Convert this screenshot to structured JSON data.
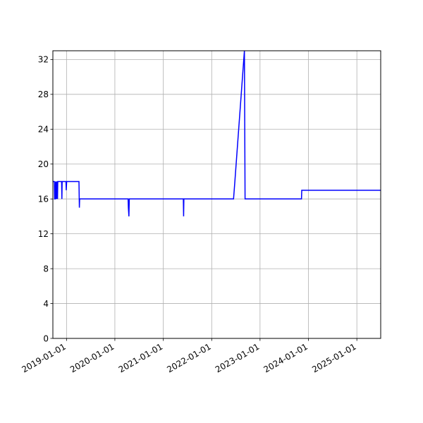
{
  "chart_data": {
    "type": "line",
    "title": "",
    "xlabel": "",
    "ylabel": "",
    "x_axis": {
      "type": "date",
      "range": [
        "2018-09-20",
        "2025-06-30"
      ],
      "ticks": [
        "2019-01-01",
        "2020-01-01",
        "2021-01-01",
        "2022-01-01",
        "2023-01-01",
        "2024-01-01",
        "2025-01-01"
      ]
    },
    "y_axis": {
      "range": [
        0,
        33
      ],
      "ticks": [
        0,
        4,
        8,
        12,
        16,
        20,
        24,
        28,
        32
      ]
    },
    "grid": true,
    "legend": "none",
    "colors": {
      "line": "#0000ff",
      "grid": "#b0b0b0",
      "axis": "#000000"
    },
    "series": [
      {
        "points": [
          [
            "2018-09-20",
            18
          ],
          [
            "2018-10-01",
            18
          ],
          [
            "2018-10-03",
            16
          ],
          [
            "2018-10-08",
            16
          ],
          [
            "2018-10-10",
            18
          ],
          [
            "2018-10-13",
            16
          ],
          [
            "2018-10-16",
            18
          ],
          [
            "2018-10-19",
            16
          ],
          [
            "2018-10-22",
            18
          ],
          [
            "2018-10-25",
            16
          ],
          [
            "2018-10-27",
            18
          ],
          [
            "2018-11-25",
            18
          ],
          [
            "2018-11-27",
            16
          ],
          [
            "2018-11-29",
            18
          ],
          [
            "2018-12-28",
            18
          ],
          [
            "2018-12-30",
            17
          ],
          [
            "2019-01-02",
            18
          ],
          [
            "2019-04-05",
            18
          ],
          [
            "2019-04-08",
            15
          ],
          [
            "2019-04-10",
            16
          ],
          [
            "2020-04-10",
            16
          ],
          [
            "2020-04-12",
            15
          ],
          [
            "2020-04-16",
            14
          ],
          [
            "2020-04-19",
            16
          ],
          [
            "2021-06-01",
            16
          ],
          [
            "2021-06-03",
            14
          ],
          [
            "2021-06-05",
            16
          ],
          [
            "2022-06-15",
            16
          ],
          [
            "2022-06-25",
            18
          ],
          [
            "2022-09-05",
            33
          ],
          [
            "2022-09-10",
            16
          ],
          [
            "2023-11-10",
            16
          ],
          [
            "2023-11-12",
            17
          ],
          [
            "2025-06-30",
            17
          ]
        ]
      }
    ]
  }
}
